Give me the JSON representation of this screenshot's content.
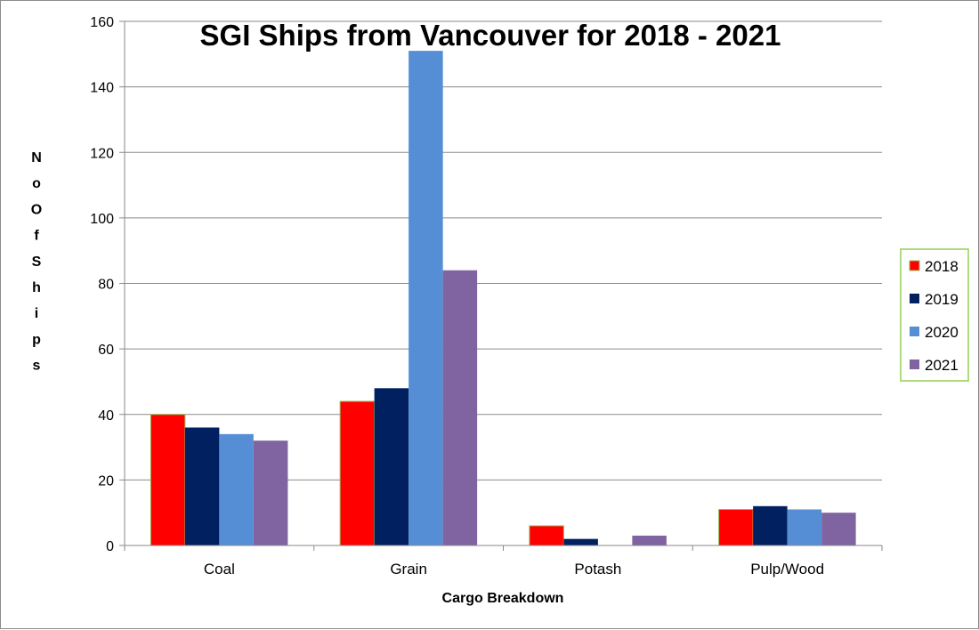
{
  "chart_data": {
    "type": "bar",
    "title": "SGI Ships from Vancouver for 2018 - 2021",
    "xlabel": "Cargo Breakdown",
    "ylabel": "No Of Ships",
    "ylim": [
      0,
      160
    ],
    "yticks": [
      "0",
      "20",
      "40",
      "60",
      "80",
      "100",
      "120",
      "140",
      "160"
    ],
    "grid": true,
    "legend_position": "right",
    "categories": [
      "Coal",
      "Grain",
      "Potash",
      "Pulp/Wood"
    ],
    "series": [
      {
        "name": "2018",
        "color": "#ff0000",
        "values": [
          40,
          44,
          6,
          11
        ]
      },
      {
        "name": "2019",
        "color": "#002060",
        "values": [
          36,
          48,
          2,
          12
        ]
      },
      {
        "name": "2020",
        "color": "#558ed5",
        "values": [
          34,
          151,
          0,
          11
        ]
      },
      {
        "name": "2021",
        "color": "#8064a2",
        "values": [
          32,
          84,
          3,
          10
        ]
      }
    ]
  }
}
